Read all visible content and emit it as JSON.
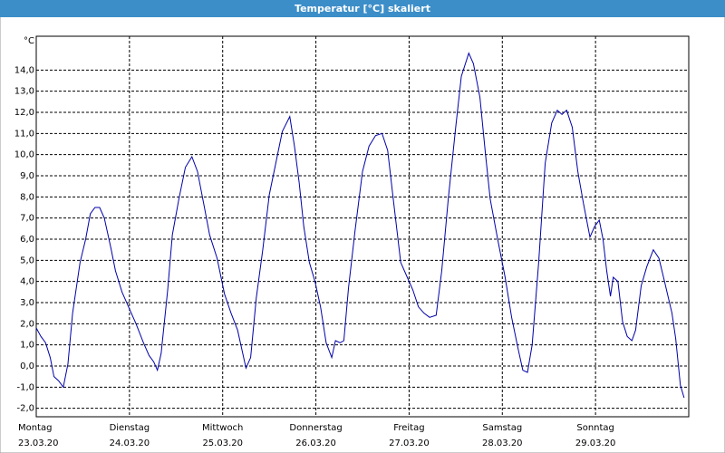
{
  "chart_data": {
    "type": "line",
    "title": "Temperatur [°C] skaliert",
    "y_unit": "°C",
    "color": "#0000a8",
    "grid": true,
    "xlim": [
      0,
      7
    ],
    "xticks": [
      {
        "value": 0,
        "label": "Montag"
      },
      {
        "value": 1,
        "label": "Dienstag"
      },
      {
        "value": 2,
        "label": "Mittwoch"
      },
      {
        "value": 3,
        "label": "Donnerstag"
      },
      {
        "value": 4,
        "label": "Freitag"
      },
      {
        "value": 5,
        "label": "Samstag"
      },
      {
        "value": 6,
        "label": "Sonntag"
      }
    ],
    "xtick_dates": [
      "23.03.20",
      "24.03.20",
      "25.03.20",
      "26.03.20",
      "27.03.20",
      "28.03.20",
      "29.03.20"
    ],
    "ylim": [
      -2.4,
      15.6
    ],
    "yticks": [
      {
        "value": -2,
        "label": "-2,0"
      },
      {
        "value": -1,
        "label": "-1,0"
      },
      {
        "value": 0,
        "label": "0,0"
      },
      {
        "value": 1,
        "label": "1,0"
      },
      {
        "value": 2,
        "label": "2,0"
      },
      {
        "value": 3,
        "label": "3,0"
      },
      {
        "value": 4,
        "label": "4,0"
      },
      {
        "value": 5,
        "label": "5,0"
      },
      {
        "value": 6,
        "label": "6,0"
      },
      {
        "value": 7,
        "label": "7,0"
      },
      {
        "value": 8,
        "label": "8,0"
      },
      {
        "value": 9,
        "label": "9,0"
      },
      {
        "value": 10,
        "label": "10,0"
      },
      {
        "value": 11,
        "label": "11,0"
      },
      {
        "value": 12,
        "label": "12,0"
      },
      {
        "value": 13,
        "label": "13,0"
      },
      {
        "value": 14,
        "label": "14,0"
      }
    ],
    "x": [
      0,
      0.05,
      0.1,
      0.15,
      0.19,
      0.24,
      0.29,
      0.34,
      0.39,
      0.47,
      0.53,
      0.58,
      0.63,
      0.68,
      0.73,
      0.8,
      0.85,
      0.92,
      0.99,
      1.07,
      1.15,
      1.21,
      1.26,
      1.3,
      1.34,
      1.41,
      1.46,
      1.53,
      1.6,
      1.67,
      1.73,
      1.8,
      1.86,
      1.94,
      2.02,
      2.09,
      2.16,
      2.25,
      2.3,
      2.36,
      2.43,
      2.5,
      2.57,
      2.64,
      2.72,
      2.77,
      2.82,
      2.87,
      2.93,
      2.99,
      3.05,
      3.11,
      3.17,
      3.21,
      3.26,
      3.3,
      3.35,
      3.42,
      3.5,
      3.57,
      3.64,
      3.71,
      3.77,
      3.83,
      3.91,
      3.98,
      4.04,
      4.1,
      4.16,
      4.22,
      4.29,
      4.35,
      4.42,
      4.5,
      4.56,
      4.64,
      4.69,
      4.76,
      4.82,
      4.87,
      4.95,
      5.03,
      5.1,
      5.17,
      5.22,
      5.27,
      5.32,
      5.39,
      5.46,
      5.53,
      5.59,
      5.64,
      5.69,
      5.75,
      5.81,
      5.87,
      5.94,
      5.99,
      6.04,
      6.08,
      6.12,
      6.16,
      6.19,
      6.24,
      6.29,
      6.34,
      6.39,
      6.43,
      6.49,
      6.55,
      6.62,
      6.68,
      6.74,
      6.82,
      6.86,
      6.91,
      6.95
    ],
    "values": [
      1.8,
      1.4,
      1.1,
      0.4,
      -0.5,
      -0.7,
      -1.0,
      0.1,
      2.5,
      4.9,
      6.0,
      7.2,
      7.5,
      7.5,
      7.0,
      5.6,
      4.5,
      3.5,
      2.8,
      2.0,
      1.1,
      0.5,
      0.2,
      -0.2,
      0.6,
      3.6,
      6.2,
      7.9,
      9.4,
      9.9,
      9.2,
      7.6,
      6.2,
      5.1,
      3.4,
      2.5,
      1.7,
      -0.1,
      0.4,
      3.2,
      5.5,
      8.1,
      9.6,
      11.1,
      11.8,
      10.4,
      8.7,
      6.6,
      4.9,
      4.0,
      2.8,
      1.1,
      0.4,
      1.2,
      1.1,
      1.2,
      3.7,
      6.4,
      9.2,
      10.4,
      10.9,
      11.0,
      10.2,
      7.9,
      4.9,
      4.2,
      3.6,
      2.8,
      2.5,
      2.3,
      2.4,
      4.5,
      7.9,
      11.3,
      13.7,
      14.8,
      14.3,
      12.7,
      10.0,
      7.9,
      6.0,
      4.2,
      2.3,
      0.8,
      -0.2,
      -0.3,
      1.0,
      4.9,
      9.6,
      11.5,
      12.1,
      11.9,
      12.1,
      11.3,
      9.2,
      7.7,
      6.1,
      6.6,
      6.9,
      6.0,
      4.5,
      3.3,
      4.2,
      4.0,
      2.1,
      1.4,
      1.2,
      1.7,
      3.8,
      4.7,
      5.5,
      5.1,
      4.0,
      2.5,
      1.3,
      -0.9,
      -1.5
    ]
  }
}
